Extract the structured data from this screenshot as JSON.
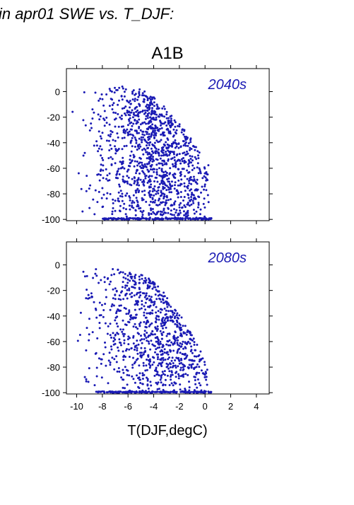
{
  "heading": "in apr01 SWE vs. T_DJF:",
  "scenario_title": "A1B",
  "xlabel": "T(DJF,degC)",
  "marker_color": "#1a1ab4",
  "chart_data": [
    {
      "type": "scatter",
      "panel": "top",
      "annotation": "2040s",
      "xlim": [
        -10.8,
        5
      ],
      "ylim": [
        -101,
        18
      ],
      "xticks": [
        -10,
        -8,
        -6,
        -4,
        -2,
        0,
        2,
        4
      ],
      "yticks": [
        0,
        -20,
        -40,
        -60,
        -80,
        -100
      ],
      "ytick_labels": [
        "0",
        "-20",
        "-40",
        "-60",
        "-80",
        "-100"
      ],
      "xtick_labels": [],
      "grid": false,
      "point_cloud": {
        "approx_count": 1400,
        "x_range": [
          -10.8,
          0.5
        ],
        "y_range": [
          -100,
          4
        ],
        "floor_y": -100,
        "floor_x_range": [
          -8,
          0.5
        ],
        "note_shape": "dense cloud; values near 0 at cold temperatures, dropping toward -100 as T approaches 0"
      }
    },
    {
      "type": "scatter",
      "panel": "bottom",
      "annotation": "2080s",
      "xlim": [
        -10.8,
        5
      ],
      "ylim": [
        -101,
        18
      ],
      "xticks": [
        -10,
        -8,
        -6,
        -4,
        -2,
        0,
        2,
        4
      ],
      "yticks": [
        0,
        -20,
        -40,
        -60,
        -80,
        -100
      ],
      "ytick_labels": [
        "0",
        "-20",
        "-40",
        "-60",
        "-80",
        "-100"
      ],
      "xtick_labels": [
        "-10",
        "-8",
        "-6",
        "-4",
        "-2",
        "0",
        "2",
        "4"
      ],
      "grid": false,
      "point_cloud": {
        "approx_count": 1100,
        "x_range": [
          -10.8,
          0.5
        ],
        "y_range": [
          -100,
          -3
        ],
        "floor_y": -100,
        "floor_x_range": [
          -8.5,
          0.5
        ],
        "note_shape": "sparser cloud; upper envelope drops from about -5 at -10 degC to -100 near 0 degC"
      }
    }
  ]
}
